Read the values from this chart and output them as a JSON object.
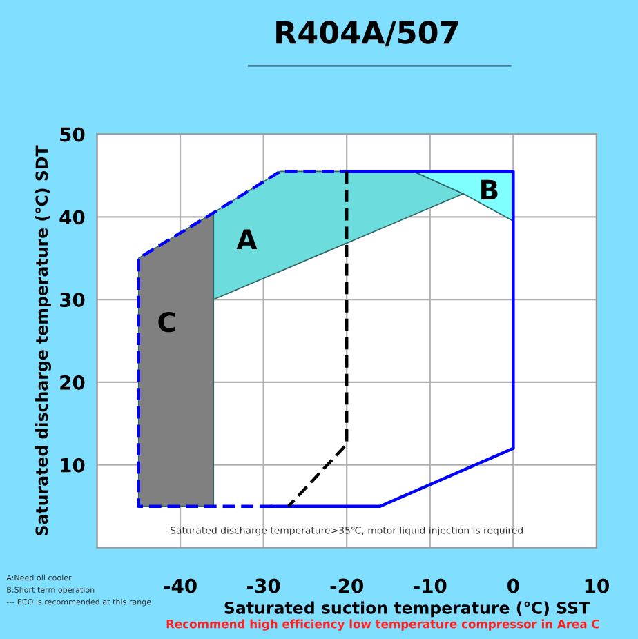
{
  "chart_data": {
    "type": "line",
    "title": "R404A/507",
    "xlabel": "Saturated suction temperature (℃) SST",
    "ylabel": "Saturated discharge temperature (℃) SDT",
    "xlim": [
      -50,
      10
    ],
    "ylim": [
      0,
      50
    ],
    "xticks": [
      {
        "value": -50,
        "label": null
      },
      -40,
      -30,
      -20,
      -10,
      0,
      10
    ],
    "yticks": [
      {
        "value": 0,
        "label": null
      },
      10,
      20,
      30,
      40,
      50
    ],
    "grid": true,
    "series": [
      {
        "type": "area",
        "color": "#808080",
        "x": [
          -45,
          -45,
          -36,
          -36
        ],
        "values": [
          5,
          35,
          40.5,
          5
        ]
      },
      {
        "type": "area",
        "color": "#6ddcdc",
        "x": [
          -36,
          -36,
          -28,
          -12,
          -6
        ],
        "values": [
          30,
          40.5,
          45.5,
          45.5,
          42.8
        ]
      },
      {
        "type": "area",
        "color": "#80ffff",
        "x": [
          -12,
          0,
          0,
          -6
        ],
        "values": [
          45.5,
          45.5,
          39.5,
          42.8
        ]
      },
      {
        "color": "#0000ff",
        "line_style": "dashed",
        "x": [
          -29,
          -45,
          -45,
          -36,
          -28,
          -20
        ],
        "values": [
          5,
          5,
          35,
          40.5,
          45.5,
          45.5
        ]
      },
      {
        "color": "#0000ff",
        "line_style": "solid",
        "x": [
          -20,
          0,
          0,
          -16,
          -29
        ],
        "values": [
          45.5,
          45.5,
          12,
          5,
          5
        ]
      },
      {
        "color": "#000000",
        "line_style": "dashed",
        "x": [
          -20,
          -20,
          -27
        ],
        "values": [
          45.5,
          12.5,
          5
        ]
      }
    ],
    "annotations": [
      "A",
      "B",
      "C",
      "Saturated discharge temperature>35℃, motor liquid injection is required",
      "A:Need oil cooler",
      "B:Short term operation",
      "--- ECO is recommended at this range",
      "Recommend high efficiency low temperature compressor in Area C"
    ]
  }
}
